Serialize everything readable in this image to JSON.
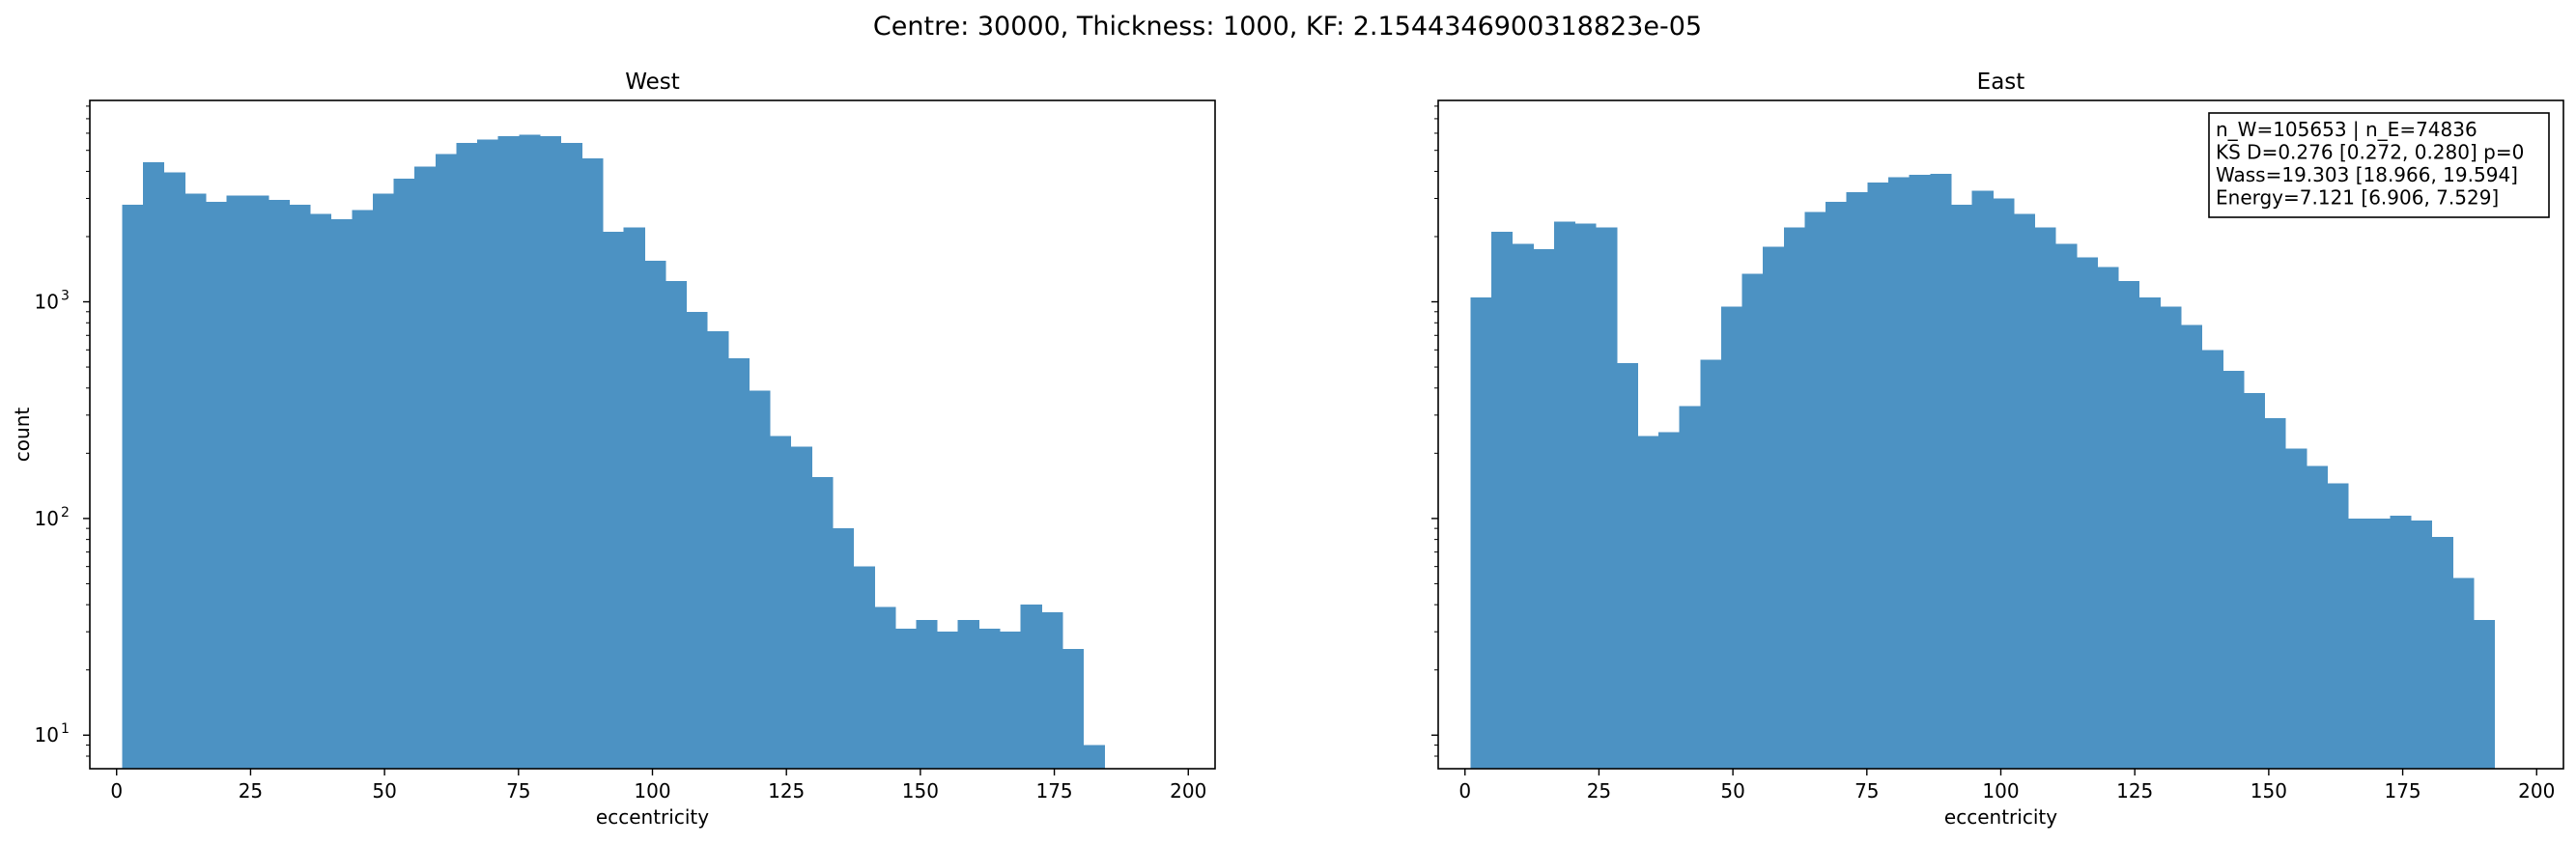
{
  "suptitle": "Centre: 30000, Thickness: 1000, KF: 2.1544346900318823e-05",
  "colors": {
    "bar": "#4c92c3",
    "axis": "#000000",
    "background": "#ffffff"
  },
  "chart_data": [
    {
      "type": "bar",
      "subtype": "histogram",
      "title": "West",
      "xlabel": "eccentricity",
      "ylabel": "count",
      "yscale": "log",
      "xlim": [
        -5,
        205
      ],
      "ylim": [
        7,
        8500
      ],
      "xticks": [
        0,
        25,
        50,
        75,
        100,
        125,
        150,
        175,
        200
      ],
      "yticks_major": [
        10,
        100,
        1000
      ],
      "ytick_labels": [
        "10^1",
        "10^2",
        "10^3"
      ],
      "bin_start": 1,
      "bin_width": 3.9,
      "values": [
        2800,
        4400,
        3950,
        3150,
        2900,
        3100,
        3100,
        2950,
        2800,
        2550,
        2400,
        2650,
        3150,
        3700,
        4200,
        4800,
        5400,
        5600,
        5800,
        5900,
        5800,
        5400,
        4600,
        2100,
        2200,
        1550,
        1250,
        900,
        730,
        550,
        390,
        240,
        215,
        155,
        90,
        60,
        39,
        31,
        34,
        30,
        34,
        31,
        30,
        40,
        37,
        25,
        9
      ]
    },
    {
      "type": "bar",
      "subtype": "histogram",
      "title": "East",
      "xlabel": "eccentricity",
      "ylabel": "",
      "yscale": "log",
      "xlim": [
        -5,
        205
      ],
      "ylim": [
        7,
        8500
      ],
      "xticks": [
        0,
        25,
        50,
        75,
        100,
        125,
        150,
        175,
        200
      ],
      "yticks_major": [
        10,
        100,
        1000
      ],
      "ytick_labels": [],
      "bin_start": 1,
      "bin_width": 3.9,
      "values": [
        1050,
        2100,
        1850,
        1750,
        2350,
        2300,
        2200,
        520,
        240,
        250,
        330,
        540,
        950,
        1350,
        1800,
        2200,
        2600,
        2900,
        3200,
        3550,
        3750,
        3850,
        3900,
        2800,
        3250,
        3000,
        2550,
        2200,
        1850,
        1600,
        1450,
        1250,
        1050,
        950,
        780,
        600,
        480,
        380,
        290,
        210,
        175,
        145,
        100,
        100,
        103,
        98,
        82,
        53,
        34
      ],
      "annotation": [
        "n_W=105653 | n_E=74836",
        "KS D=0.276 [0.272, 0.280]  p=0",
        "Wass=19.303 [18.966, 19.594]",
        "Energy=7.121 [6.906, 7.529]"
      ]
    }
  ]
}
